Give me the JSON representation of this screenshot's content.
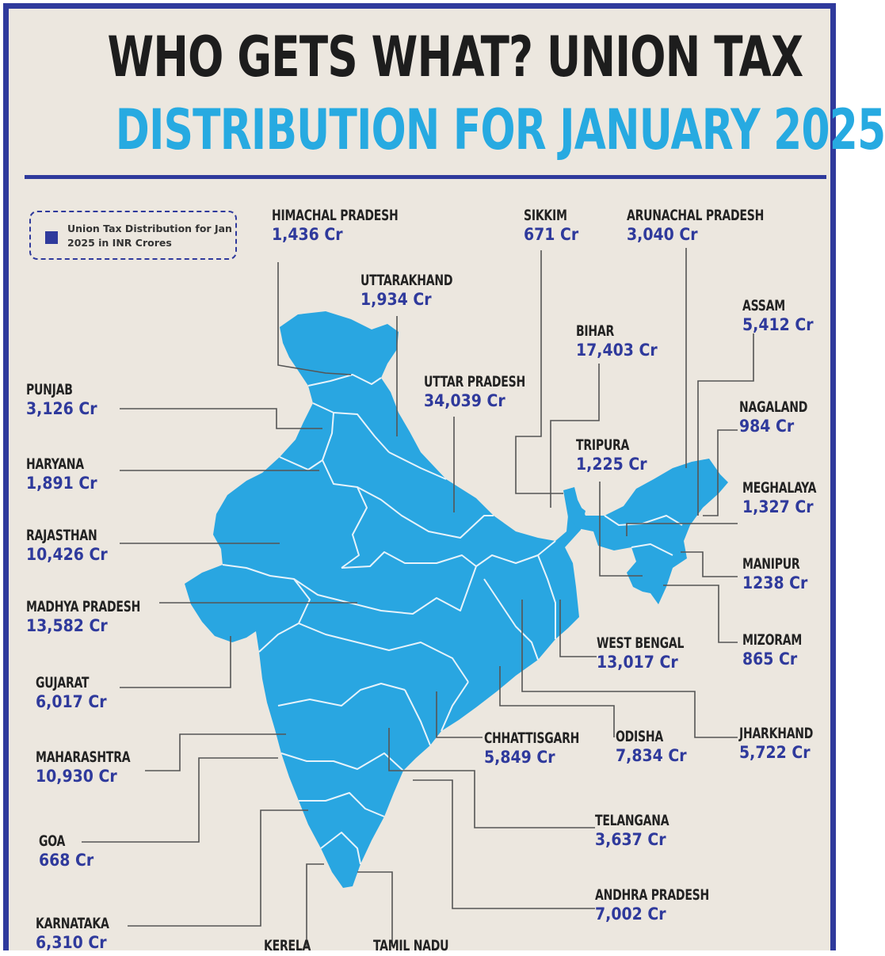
{
  "title_line1": "WHO GETS WHAT? UNION TAX",
  "title_line2": "DISTRIBUTION FOR JANUARY 2025",
  "legend": {
    "text": "Union Tax Distribution for Jan 2025 in INR Crores",
    "color": "#2f3a9c"
  },
  "colors": {
    "map": "#29a6e1",
    "border": "#e6f3fb",
    "leader": "#555555",
    "frame": "#2f3a9c"
  },
  "states": {
    "himachal_pradesh": {
      "name": "HIMACHAL PRADESH",
      "value": "1,436 Cr"
    },
    "uttarakhand": {
      "name": "UTTARAKHAND",
      "value": "1,934 Cr"
    },
    "sikkim": {
      "name": "SIKKIM",
      "value": "671 Cr"
    },
    "arunachal_pradesh": {
      "name": "ARUNACHAL PRADESH",
      "value": "3,040 Cr"
    },
    "assam": {
      "name": "ASSAM",
      "value": "5,412 Cr"
    },
    "bihar": {
      "name": "BIHAR",
      "value": "17,403 Cr"
    },
    "uttar_pradesh": {
      "name": "UTTAR PRADESH",
      "value": "34,039 Cr"
    },
    "punjab": {
      "name": "PUNJAB",
      "value": "3,126 Cr"
    },
    "nagaland": {
      "name": "NAGALAND",
      "value": "984 Cr"
    },
    "tripura": {
      "name": "TRIPURA",
      "value": "1,225 Cr"
    },
    "haryana": {
      "name": "HARYANA",
      "value": "1,891 Cr"
    },
    "meghalaya": {
      "name": "MEGHALAYA",
      "value": "1,327 Cr"
    },
    "rajasthan": {
      "name": "RAJASTHAN",
      "value": "10,426 Cr"
    },
    "manipur": {
      "name": "MANIPUR",
      "value": "1238 Cr"
    },
    "madhya_pradesh": {
      "name": "MADHYA PRADESH",
      "value": "13,582 Cr"
    },
    "west_bengal": {
      "name": "WEST BENGAL",
      "value": "13,017 Cr"
    },
    "mizoram": {
      "name": "MIZORAM",
      "value": "865 Cr"
    },
    "gujarat": {
      "name": "GUJARAT",
      "value": "6,017 Cr"
    },
    "chhattisgarh": {
      "name": "CHHATTISGARH",
      "value": "5,849 Cr"
    },
    "odisha": {
      "name": "ODISHA",
      "value": "7,834 Cr"
    },
    "jharkhand": {
      "name": "JHARKHAND",
      "value": "5,722 Cr"
    },
    "maharashtra": {
      "name": "MAHARASHTRA",
      "value": "10,930 Cr"
    },
    "telangana": {
      "name": "TELANGANA",
      "value": "3,637 Cr"
    },
    "goa": {
      "name": "GOA",
      "value": "668 Cr"
    },
    "andhra_pradesh": {
      "name": "ANDHRA PRADESH",
      "value": "7,002 Cr"
    },
    "karnataka": {
      "name": "KARNATAKA",
      "value": "6,310 Cr"
    },
    "kerela": {
      "name": "KERELA",
      "value": ""
    },
    "tamil_nadu": {
      "name": "TAMIL NADU",
      "value": ""
    }
  }
}
